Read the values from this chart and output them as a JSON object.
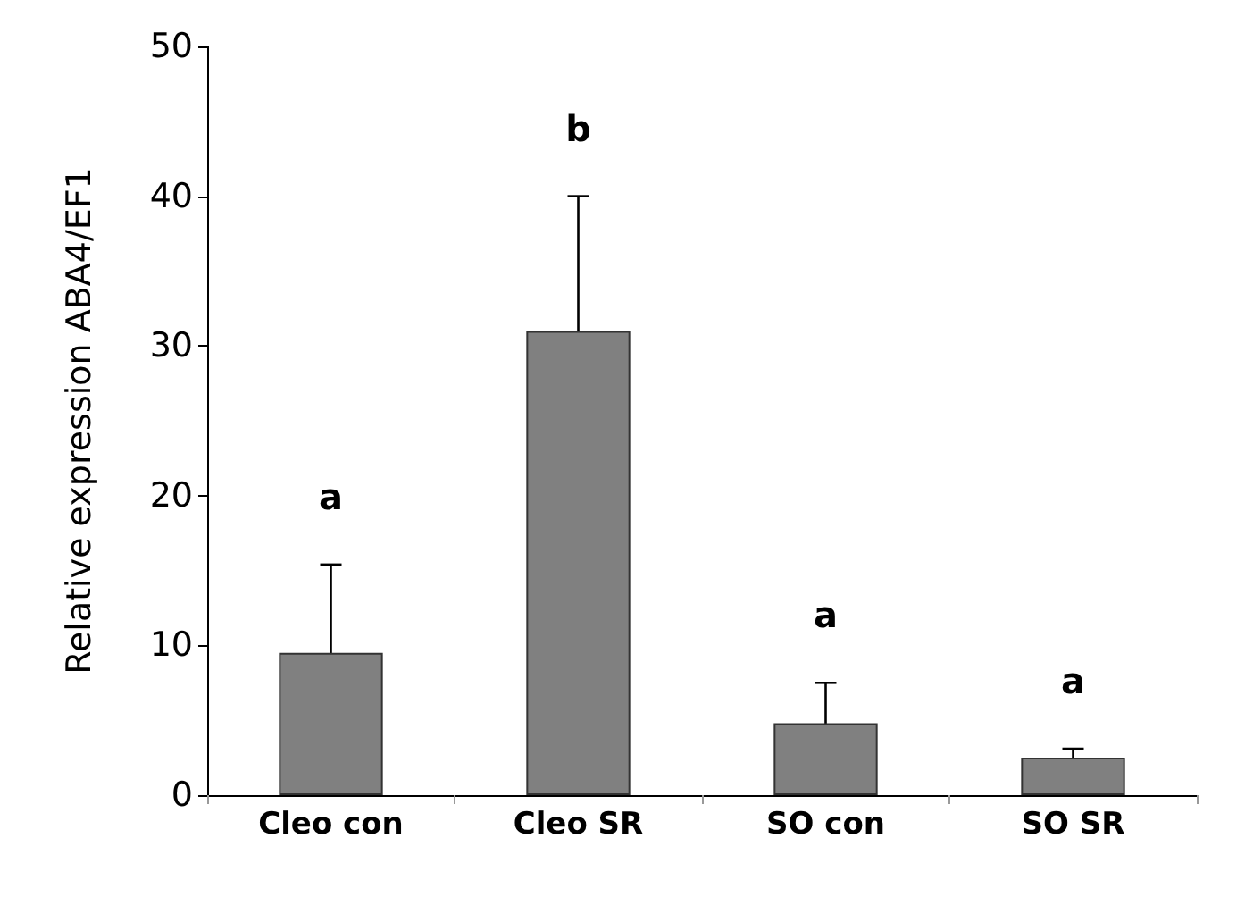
{
  "chart_data": {
    "type": "bar",
    "ylabel": "Relative expression ABA4/EF1",
    "categories": [
      "Cleo con",
      "Cleo SR",
      "SO con",
      "SO SR"
    ],
    "values": [
      9.5,
      31,
      4.8,
      2.5
    ],
    "errors": [
      5.9,
      9,
      2.7,
      0.6
    ],
    "color": "#808080",
    "ylim": [
      0,
      50
    ],
    "yticks": [
      0,
      10,
      20,
      30,
      40,
      50
    ],
    "grid": false,
    "annotations": [
      "a",
      "b",
      "a",
      "a"
    ]
  }
}
